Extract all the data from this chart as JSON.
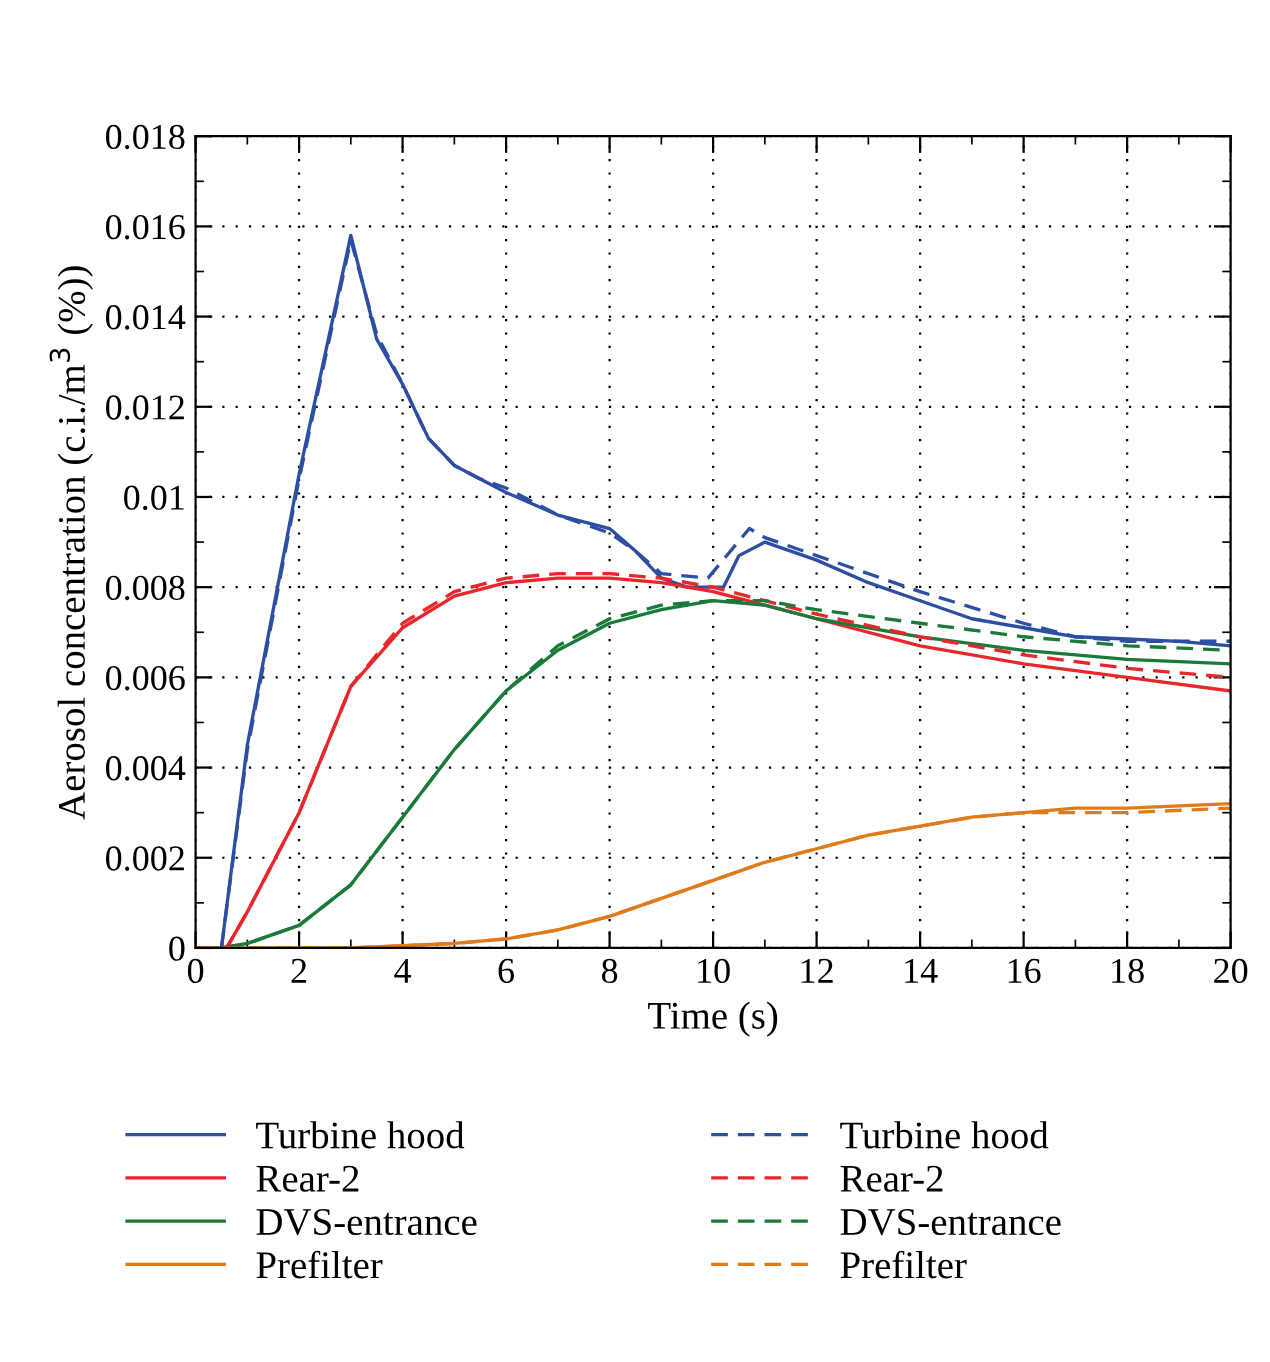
{
  "chart_data": {
    "type": "line",
    "xlabel": "Time (s)",
    "ylabel": "Aerosol concentration (c.i./m$^{3}$ (%))",
    "xlim": [
      0,
      20
    ],
    "xticks": [
      0,
      2,
      4,
      6,
      8,
      10,
      12,
      14,
      16,
      18,
      20
    ],
    "ylim": [
      0,
      0.018
    ],
    "yticks": [
      0,
      0.002,
      0.004,
      0.006,
      0.008,
      0.01,
      0.012,
      0.014,
      0.016,
      0.018
    ],
    "grid": true,
    "legend": "bottom",
    "series": [
      {
        "name": "Turbine hood",
        "color": "#2c4ea3",
        "line_style": "solid",
        "x": [
          0,
          0.5,
          1,
          2,
          3,
          3.5,
          4,
          4.5,
          5,
          5.5,
          6,
          7,
          8,
          8.5,
          9,
          9.5,
          10.2,
          10.5,
          11,
          12,
          13,
          14,
          15,
          16,
          17,
          18,
          19,
          20
        ],
        "values": [
          0,
          0,
          0.0045,
          0.0105,
          0.0158,
          0.0135,
          0.0125,
          0.0113,
          0.0107,
          0.0104,
          0.0101,
          0.0096,
          0.0093,
          0.0088,
          0.0082,
          0.008,
          0.008,
          0.0087,
          0.009,
          0.0086,
          0.0081,
          0.0077,
          0.0073,
          0.0071,
          0.0069,
          0.00685,
          0.0068,
          0.0067
        ]
      },
      {
        "name": "Rear-2",
        "color": "#e8262b",
        "line_style": "solid",
        "x": [
          0,
          0.6,
          1,
          2,
          3,
          4,
          5,
          6,
          7,
          8,
          9,
          10,
          11,
          12,
          14,
          16,
          18,
          20
        ],
        "values": [
          0,
          0,
          0.0008,
          0.003,
          0.0058,
          0.0071,
          0.0078,
          0.0081,
          0.0082,
          0.0082,
          0.0081,
          0.0079,
          0.0076,
          0.0073,
          0.0067,
          0.0063,
          0.006,
          0.0057
        ]
      },
      {
        "name": "DVS-entrance",
        "color": "#1a7a3a",
        "line_style": "solid",
        "x": [
          0,
          0.5,
          1,
          2,
          3,
          4,
          5,
          6,
          7,
          8,
          9,
          10,
          11,
          12,
          14,
          16,
          18,
          20
        ],
        "values": [
          0,
          0,
          0.0001,
          0.0005,
          0.0014,
          0.0029,
          0.0044,
          0.0057,
          0.0066,
          0.0072,
          0.0075,
          0.0077,
          0.0076,
          0.0073,
          0.0069,
          0.0066,
          0.0064,
          0.0063
        ]
      },
      {
        "name": "Prefilter",
        "color": "#e07b1a",
        "line_style": "solid",
        "x": [
          0,
          1,
          3,
          5,
          6,
          7,
          8,
          9,
          10,
          11,
          12,
          13,
          14,
          15,
          16,
          17,
          18,
          20
        ],
        "values": [
          0,
          0,
          0,
          0.0001,
          0.0002,
          0.0004,
          0.0007,
          0.0011,
          0.0015,
          0.0019,
          0.0022,
          0.0025,
          0.0027,
          0.0029,
          0.003,
          0.0031,
          0.0031,
          0.0032
        ]
      },
      {
        "name": "Turbine hood",
        "color": "#2c4ea3",
        "line_style": "dashed",
        "x": [
          0,
          0.5,
          1,
          2,
          3,
          3.5,
          4,
          4.5,
          5,
          5.5,
          6,
          7,
          8,
          8.5,
          9,
          9.9,
          10.7,
          11,
          12,
          14,
          16,
          17,
          18,
          20
        ],
        "values": [
          0,
          0,
          0.0044,
          0.0104,
          0.0157,
          0.0136,
          0.0125,
          0.0113,
          0.0107,
          0.0104,
          0.0102,
          0.0096,
          0.0092,
          0.0088,
          0.0083,
          0.0082,
          0.0093,
          0.0091,
          0.0087,
          0.0079,
          0.0072,
          0.0069,
          0.0068,
          0.0068
        ]
      },
      {
        "name": "Rear-2",
        "color": "#e8262b",
        "line_style": "dashed",
        "x": [
          0,
          0.6,
          1,
          2,
          3,
          4,
          5,
          6,
          7,
          8,
          9,
          10,
          11,
          12,
          14,
          16,
          18,
          20
        ],
        "values": [
          0,
          0,
          0.0008,
          0.003,
          0.0058,
          0.0072,
          0.0079,
          0.0082,
          0.0083,
          0.0083,
          0.0082,
          0.008,
          0.0077,
          0.0074,
          0.0069,
          0.0065,
          0.0062,
          0.006
        ]
      },
      {
        "name": "DVS-entrance",
        "color": "#1a7a3a",
        "line_style": "dashed",
        "x": [
          0,
          0.5,
          1,
          2,
          3,
          4,
          5,
          6,
          7,
          8,
          9,
          10,
          11,
          12,
          14,
          16,
          18,
          20
        ],
        "values": [
          0,
          0,
          0.0001,
          0.0005,
          0.0014,
          0.0029,
          0.0044,
          0.0057,
          0.0067,
          0.0073,
          0.0076,
          0.0077,
          0.0077,
          0.0075,
          0.0072,
          0.0069,
          0.0067,
          0.0066
        ]
      },
      {
        "name": "Prefilter",
        "color": "#e07b1a",
        "line_style": "dashed",
        "x": [
          0,
          1,
          3,
          5,
          6,
          7,
          8,
          9,
          10,
          11,
          12,
          13,
          14,
          15,
          16,
          17,
          18,
          20
        ],
        "values": [
          0,
          0,
          0,
          0.0001,
          0.0002,
          0.0004,
          0.0007,
          0.0011,
          0.0015,
          0.0019,
          0.0022,
          0.0025,
          0.0027,
          0.0029,
          0.003,
          0.003,
          0.003,
          0.0031
        ]
      }
    ]
  }
}
